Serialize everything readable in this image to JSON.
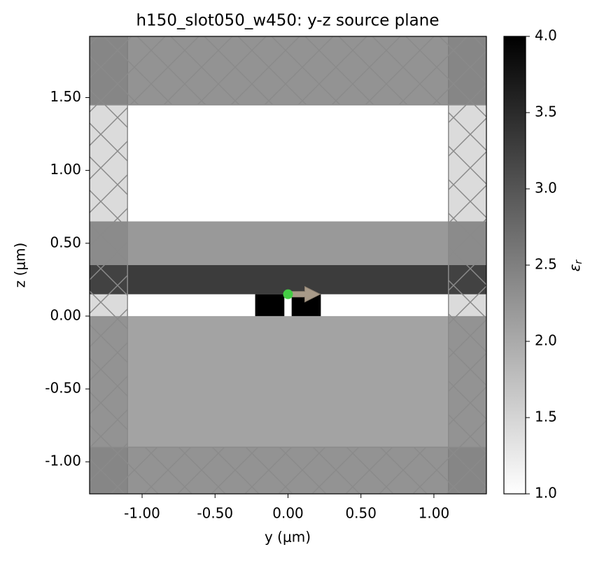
{
  "chart_data": {
    "type": "structure",
    "title": "h150_slot050_w450: y-z source plane",
    "xlabel": "y (μm)",
    "ylabel": "z (μm)",
    "xlim": [
      -1.36,
      1.36
    ],
    "ylim": [
      -1.22,
      1.92
    ],
    "xticks": [
      {
        "value": -1,
        "label": "-1.00"
      },
      {
        "value": -0.5,
        "label": "-0.50"
      },
      {
        "value": 0,
        "label": "0.00"
      },
      {
        "value": 0.5,
        "label": "0.50"
      },
      {
        "value": 1,
        "label": "1.00"
      }
    ],
    "yticks": [
      {
        "value": -1,
        "label": "-1.00"
      },
      {
        "value": -0.5,
        "label": "-0.50"
      },
      {
        "value": 0,
        "label": "0.00"
      },
      {
        "value": 0.5,
        "label": "0.50"
      },
      {
        "value": 1,
        "label": "1.00"
      },
      {
        "value": 1.5,
        "label": "1.50"
      }
    ],
    "background_eps": 1,
    "structures": [
      {
        "y": [
          null,
          null
        ],
        "z": [
          null,
          0
        ],
        "eps": 2.085
      },
      {
        "y": [
          null,
          null
        ],
        "z": [
          1.45,
          null
        ],
        "eps": 2.085
      },
      {
        "y": [
          null,
          null
        ],
        "z": [
          0.35,
          0.65
        ],
        "eps": 2.2
      },
      {
        "y": [
          null,
          null
        ],
        "z": [
          0.15,
          0.35
        ],
        "eps": 3.3
      },
      {
        "y": [
          -0.225,
          -0.025
        ],
        "z": [
          0,
          0.15
        ],
        "eps": 4
      },
      {
        "y": [
          0.025,
          0.225
        ],
        "z": [
          0,
          0.15
        ],
        "eps": 4
      }
    ],
    "pml": {
      "y": [
        -1.1,
        1.1
      ],
      "z": [
        -0.9,
        1.45
      ]
    },
    "source": {
      "y": 0,
      "z": 0.15,
      "color": "#44cc44",
      "arrow_color": "#a89a88"
    },
    "colorbar": {
      "clim": [
        1,
        4
      ],
      "low_color": "#ffffff",
      "high_color": "#000000",
      "symbol": "ε",
      "subscript": "r",
      "ticks": [
        {
          "value": 1,
          "label": "1.0"
        },
        {
          "value": 1.5,
          "label": "1.5"
        },
        {
          "value": 2,
          "label": "2.0"
        },
        {
          "value": 2.5,
          "label": "2.5"
        },
        {
          "value": 3,
          "label": "3.0"
        },
        {
          "value": 3.5,
          "label": "3.5"
        },
        {
          "value": 4,
          "label": "4.0"
        }
      ]
    }
  }
}
